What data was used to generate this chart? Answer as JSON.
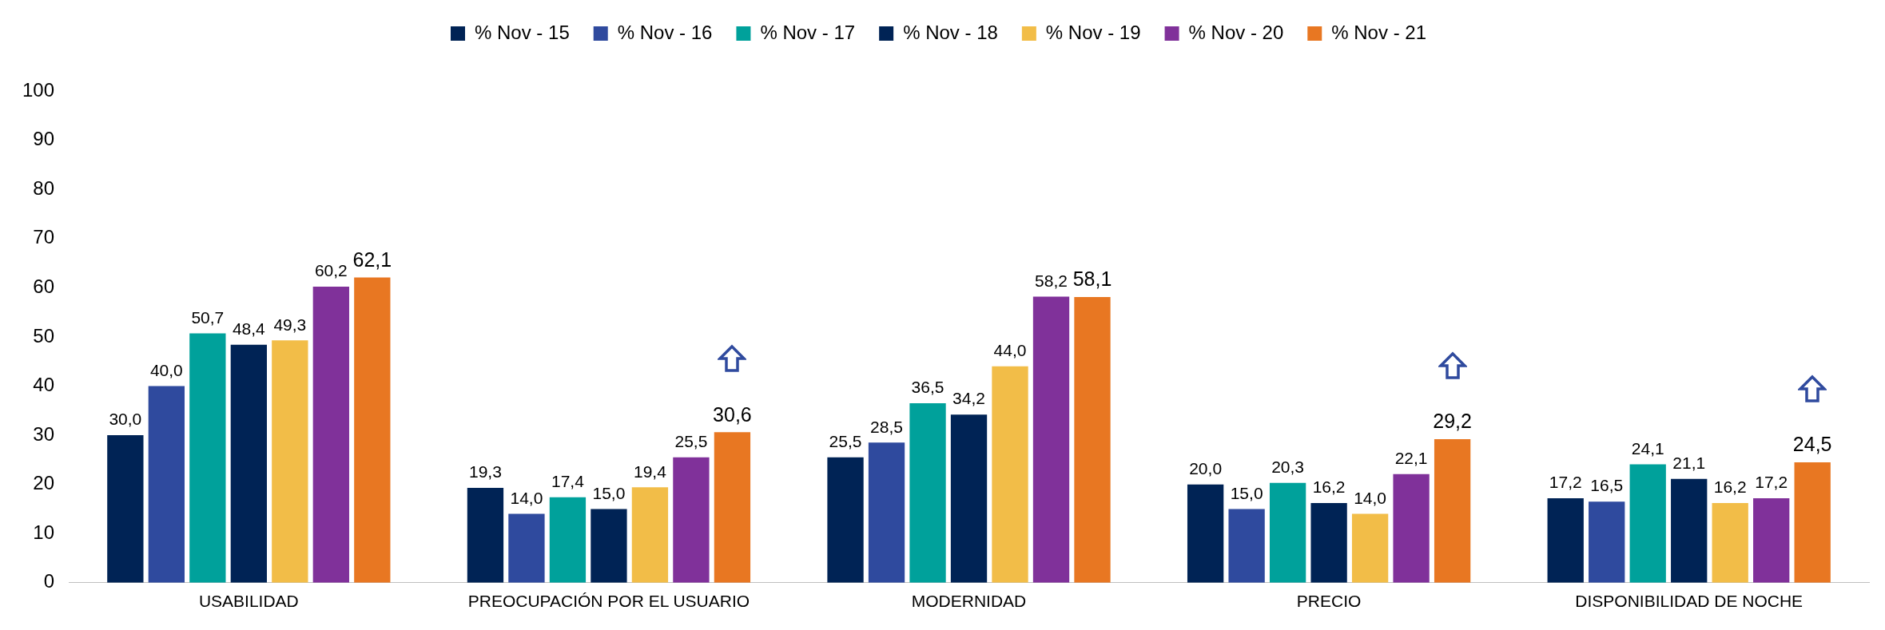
{
  "chart_data": {
    "type": "bar",
    "categories": [
      "USABILIDAD",
      "PREOCUPACIÓN POR EL USUARIO",
      "MODERNIDAD",
      "PRECIO",
      "DISPONIBILIDAD DE NOCHE"
    ],
    "series": [
      {
        "name": "% Nov - 15",
        "color": "#002355",
        "values": [
          30.0,
          19.3,
          25.5,
          20.0,
          17.2
        ],
        "value_labels": [
          "30,0",
          "19,3",
          "25,5",
          "20,0",
          "17,2"
        ]
      },
      {
        "name": "% Nov - 16",
        "color": "#2f4a9e",
        "values": [
          40.0,
          14.0,
          28.5,
          15.0,
          16.5
        ],
        "value_labels": [
          "40,0",
          "14,0",
          "28,5",
          "15,0",
          "16,5"
        ]
      },
      {
        "name": "% Nov - 17",
        "color": "#00a19b",
        "values": [
          50.7,
          17.4,
          36.5,
          20.3,
          24.1
        ],
        "value_labels": [
          "50,7",
          "17,4",
          "36,5",
          "20,3",
          "24,1"
        ]
      },
      {
        "name": "% Nov - 18",
        "color": "#002355",
        "values": [
          48.4,
          15.0,
          34.2,
          16.2,
          21.1
        ],
        "value_labels": [
          "48,4",
          "15,0",
          "34,2",
          "16,2",
          "21,1"
        ]
      },
      {
        "name": "% Nov - 19",
        "color": "#f2bd48",
        "values": [
          49.3,
          19.4,
          44.0,
          14.0,
          16.2
        ],
        "value_labels": [
          "49,3",
          "19,4",
          "44,0",
          "14,0",
          "16,2"
        ]
      },
      {
        "name": "% Nov - 20",
        "color": "#80319a",
        "values": [
          60.2,
          25.5,
          58.2,
          22.1,
          17.2
        ],
        "value_labels": [
          "60,2",
          "25,5",
          "58,2",
          "22,1",
          "17,2"
        ]
      },
      {
        "name": "% Nov - 21",
        "color": "#e87722",
        "values": [
          62.1,
          30.6,
          58.1,
          29.2,
          24.5
        ],
        "value_labels": [
          "62,1",
          "30,6",
          "58,1",
          "29,2",
          "24,5"
        ]
      }
    ],
    "ylim": [
      0,
      100
    ],
    "yticks": [
      0,
      10,
      20,
      30,
      40,
      50,
      60,
      70,
      80,
      90,
      100
    ],
    "grid": false,
    "legend": "top"
  }
}
